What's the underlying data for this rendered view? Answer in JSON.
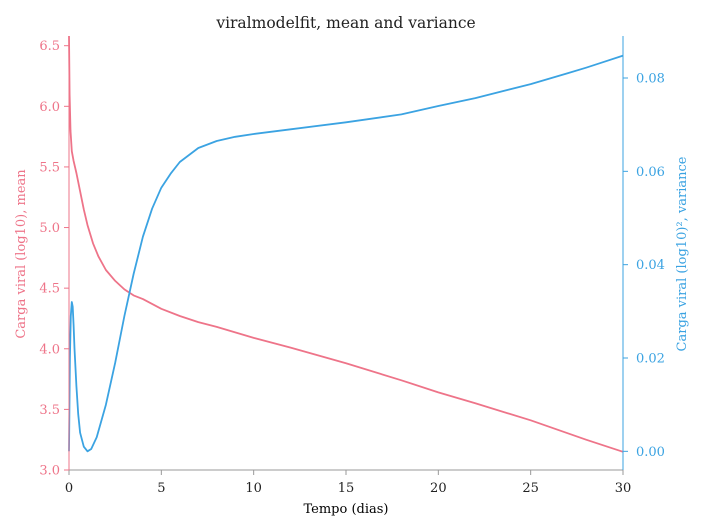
{
  "chart_data": {
    "type": "line",
    "title": "viralmodelfit, mean and variance",
    "xlabel": "Tempo (dias)",
    "xlim": [
      0,
      30
    ],
    "xticks": [
      0,
      5,
      10,
      15,
      20,
      25,
      30
    ],
    "grid": false,
    "colors": {
      "mean": "#ee7489",
      "variance": "#3ba3e2",
      "axis": "#999999"
    },
    "left_axis": {
      "label": "Carga viral (log10), mean",
      "ylim": [
        3.0,
        6.58
      ],
      "ticks": [
        3.0,
        3.5,
        4.0,
        4.5,
        5.0,
        5.5,
        6.0,
        6.5
      ],
      "tick_labels": [
        "3.0",
        "3.5",
        "4.0",
        "4.5",
        "5.0",
        "5.5",
        "6.0",
        "6.5"
      ]
    },
    "right_axis": {
      "label": "Carga viral (log10)², variance",
      "ylim": [
        -0.004,
        0.089
      ],
      "ticks": [
        0.0,
        0.02,
        0.04,
        0.06,
        0.08
      ],
      "tick_labels": [
        "0.00",
        "0.02",
        "0.04",
        "0.06",
        "0.08"
      ]
    },
    "series": [
      {
        "axis": "left",
        "x": [
          0,
          0.03,
          0.08,
          0.15,
          0.25,
          0.4,
          0.6,
          0.8,
          1.0,
          1.3,
          1.6,
          2.0,
          2.5,
          3.0,
          3.5,
          4.0,
          5.0,
          6.0,
          7.0,
          8.0,
          10.0,
          12.0,
          15.0,
          18.0,
          20.0,
          22.0,
          25.0,
          28.0,
          30.0
        ],
        "values": [
          6.58,
          6.1,
          5.8,
          5.63,
          5.55,
          5.45,
          5.3,
          5.15,
          5.02,
          4.87,
          4.76,
          4.65,
          4.56,
          4.49,
          4.44,
          4.41,
          4.33,
          4.27,
          4.22,
          4.18,
          4.09,
          4.01,
          3.88,
          3.74,
          3.64,
          3.55,
          3.41,
          3.25,
          3.15
        ]
      },
      {
        "axis": "right",
        "x": [
          0,
          0.05,
          0.1,
          0.15,
          0.2,
          0.25,
          0.3,
          0.4,
          0.5,
          0.6,
          0.8,
          1.0,
          1.2,
          1.5,
          2.0,
          2.5,
          3.0,
          3.5,
          4.0,
          4.5,
          5.0,
          5.5,
          6.0,
          7.0,
          8.0,
          9.0,
          10.0,
          12.0,
          15.0,
          18.0,
          20.0,
          22.0,
          25.0,
          27.0,
          28.0,
          29.0,
          30.0
        ],
        "values": [
          0.0,
          0.02,
          0.029,
          0.032,
          0.031,
          0.027,
          0.022,
          0.014,
          0.008,
          0.004,
          0.001,
          0.0,
          0.0005,
          0.003,
          0.01,
          0.019,
          0.029,
          0.038,
          0.046,
          0.052,
          0.0565,
          0.0595,
          0.062,
          0.065,
          0.0665,
          0.0674,
          0.068,
          0.069,
          0.0705,
          0.0722,
          0.074,
          0.0757,
          0.0787,
          0.081,
          0.0822,
          0.0835,
          0.0848
        ]
      }
    ]
  }
}
